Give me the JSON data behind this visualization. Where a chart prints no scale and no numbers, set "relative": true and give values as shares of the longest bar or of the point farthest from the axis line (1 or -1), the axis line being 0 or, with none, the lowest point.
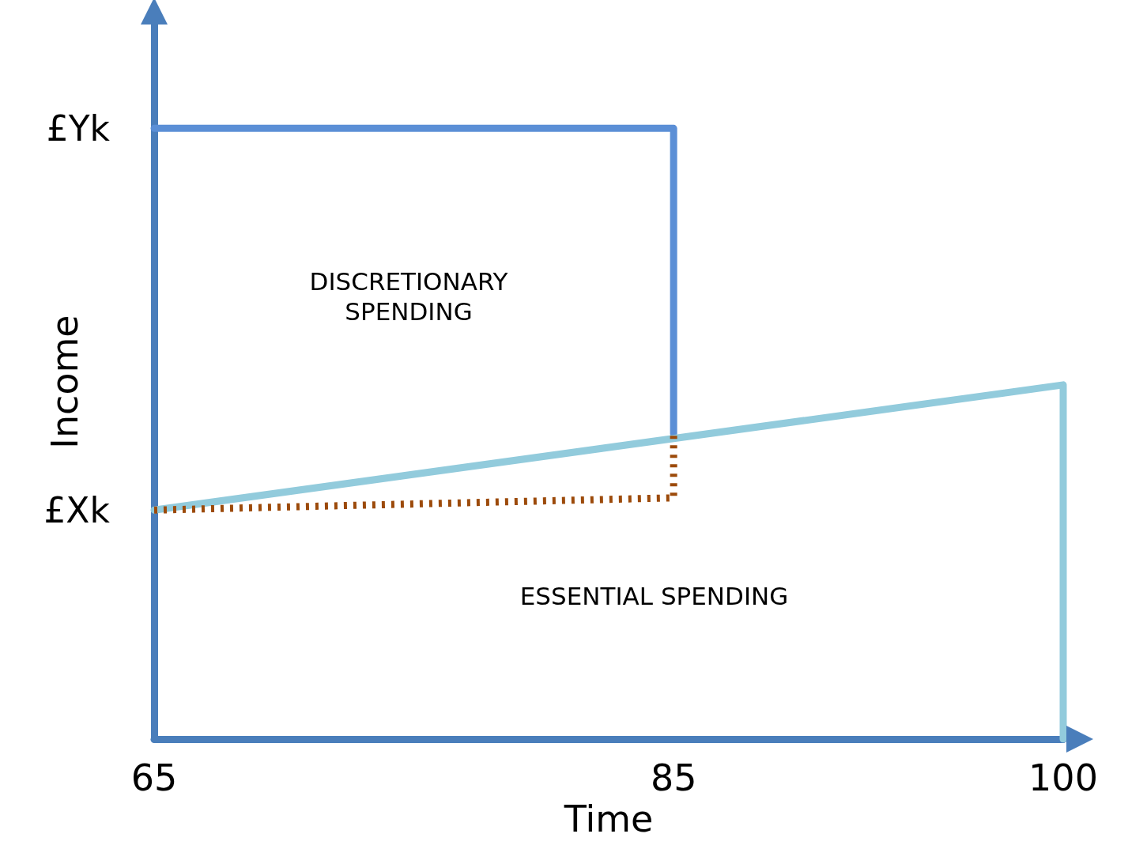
{
  "chart_data": {
    "type": "line",
    "relative": true,
    "xlabel": "Time",
    "ylabel": "Income",
    "xlim": [
      65,
      100
    ],
    "xticks": [
      65,
      85,
      100
    ],
    "marker": "none",
    "grid": false,
    "series": [
      {
        "color": "#5b8fd6",
        "x": [
          65,
          85,
          85
        ],
        "values": [
          1,
          1,
          0.5
        ],
        "line_style": "solid"
      },
      {
        "color": "#92cbdc",
        "x": [
          65,
          100,
          100
        ],
        "values": [
          0.375,
          0.58,
          0
        ],
        "line_style": "solid"
      },
      {
        "color": "#9c4a0a",
        "x": [
          65,
          85,
          85
        ],
        "values": [
          0.375,
          0.395,
          0.5
        ],
        "line_style": "dotted"
      }
    ],
    "annotations": [
      {
        "text": "£Yk",
        "x": 65,
        "y": 1
      },
      {
        "text": "£Xk",
        "x": 65,
        "y": 0.375
      },
      "DISCRETIONARY\nSPENDING",
      "ESSENTIAL SPENDING"
    ]
  }
}
